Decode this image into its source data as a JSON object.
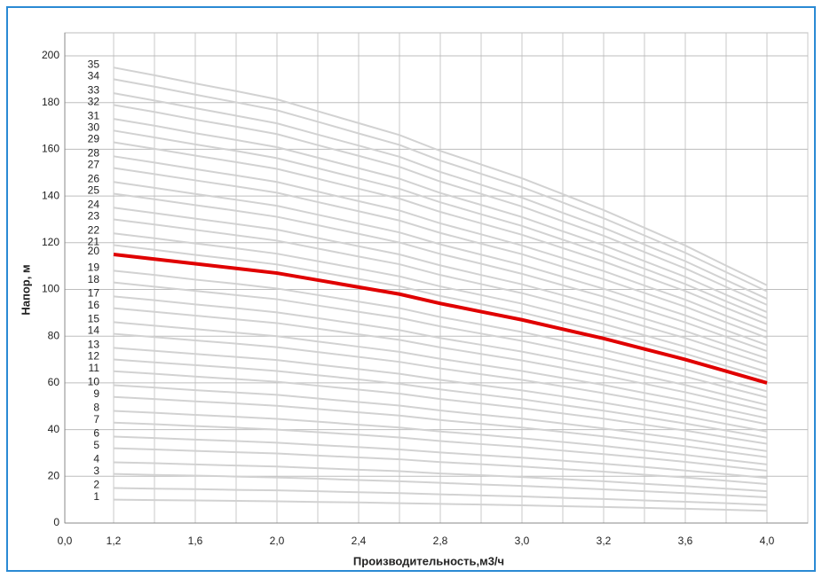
{
  "chart_data": {
    "type": "line",
    "x_label": "Производительность,м3/ч",
    "y_label": "Напор, м",
    "categories": [
      "0,0",
      "1,2",
      null,
      "1,6",
      null,
      "2,0",
      null,
      "2,4",
      null,
      "2,8",
      null,
      "3,0",
      null,
      "3,2",
      null,
      "3,6",
      null,
      "4,0"
    ],
    "ylim": [
      0,
      200
    ],
    "yticks": [
      0,
      20,
      40,
      60,
      80,
      100,
      120,
      140,
      160,
      180,
      200
    ],
    "grid": true,
    "series": [
      {
        "name": "1",
        "color": "#d2d2d2",
        "values": [
          null,
          10,
          9.8,
          9.7,
          9.5,
          9.3,
          9,
          8.8,
          8.5,
          8.2,
          7.9,
          7.6,
          7.2,
          6.9,
          6.5,
          6.1,
          5.7,
          5.2
        ]
      },
      {
        "name": "2",
        "color": "#d2d2d2",
        "values": [
          null,
          15,
          14.7,
          14.5,
          14.2,
          14,
          13.6,
          13.2,
          12.8,
          12.3,
          11.8,
          11.4,
          10.8,
          10.3,
          9.7,
          9.1,
          8.5,
          7.8
        ]
      },
      {
        "name": "3",
        "color": "#d2d2d2",
        "values": [
          null,
          21,
          20.6,
          20.3,
          19.9,
          19.5,
          19,
          18.4,
          17.9,
          17.2,
          16.5,
          15.9,
          15.2,
          14.4,
          13.6,
          12.8,
          11.9,
          11
        ]
      },
      {
        "name": "4",
        "color": "#d2d2d2",
        "values": [
          null,
          26,
          25.6,
          25.1,
          24.6,
          24.2,
          23.5,
          22.8,
          22.2,
          21.2,
          20.5,
          19.7,
          18.8,
          17.9,
          16.8,
          15.8,
          14.7,
          13.6
        ]
      },
      {
        "name": "5",
        "color": "#d2d2d2",
        "values": [
          null,
          32,
          31.5,
          30.9,
          30.3,
          29.8,
          28.9,
          28.1,
          27.3,
          26.1,
          25.2,
          24.2,
          23.1,
          22,
          20.7,
          19.5,
          18.1,
          16.7
        ]
      },
      {
        "name": "6",
        "color": "#d2d2d2",
        "values": [
          null,
          37,
          36.4,
          35.7,
          35.1,
          34.4,
          33.4,
          32.5,
          31.5,
          30.2,
          29.1,
          28,
          26.7,
          25.4,
          24,
          22.5,
          20.9,
          19.3
        ]
      },
      {
        "name": "7",
        "color": "#d2d2d2",
        "values": [
          null,
          43,
          42.3,
          41.5,
          40.8,
          40,
          38.9,
          37.8,
          36.6,
          35.1,
          33.8,
          32.6,
          31,
          29.5,
          27.9,
          26.2,
          24.3,
          22.4
        ]
      },
      {
        "name": "8",
        "color": "#d2d2d2",
        "values": [
          null,
          48,
          47.2,
          46.3,
          45.5,
          44.6,
          43.4,
          42.1,
          40.9,
          39.2,
          37.8,
          36.3,
          34.7,
          33,
          31.1,
          29.2,
          27.1,
          25.1
        ]
      },
      {
        "name": "9",
        "color": "#d2d2d2",
        "values": [
          null,
          54,
          53.1,
          52.1,
          51.2,
          50.2,
          48.8,
          47.4,
          46,
          44.1,
          42.5,
          40.9,
          39,
          37.1,
          35,
          32.9,
          30.5,
          28.2
        ]
      },
      {
        "name": "10",
        "color": "#d2d2d2",
        "values": [
          null,
          59,
          58,
          56.9,
          55.9,
          54.9,
          53.3,
          51.8,
          50.3,
          48.2,
          46.4,
          44.7,
          42.6,
          40.5,
          38.2,
          35.9,
          33.3,
          30.8
        ]
      },
      {
        "name": "11",
        "color": "#d2d2d2",
        "values": [
          null,
          65,
          63.9,
          62.7,
          61.6,
          60.5,
          58.8,
          57.1,
          55.4,
          53.1,
          51.2,
          49.2,
          46.9,
          44.7,
          42.1,
          39.6,
          36.7,
          33.9
        ]
      },
      {
        "name": "12",
        "color": "#d2d2d2",
        "values": [
          null,
          70,
          68.8,
          67.6,
          66.4,
          65.1,
          63.3,
          61.5,
          59.6,
          57.2,
          55.1,
          53,
          50.5,
          48.1,
          45.4,
          42.6,
          39.6,
          36.5
        ]
      },
      {
        "name": "13",
        "color": "#d2d2d2",
        "values": [
          null,
          75,
          73.7,
          72.4,
          71.1,
          69.8,
          67.8,
          65.9,
          63.9,
          61.3,
          59,
          56.8,
          54.2,
          51.5,
          48.6,
          45.7,
          42.4,
          39.2
        ]
      },
      {
        "name": "14",
        "color": "#d2d2d2",
        "values": [
          null,
          81,
          79.6,
          78.2,
          76.8,
          75.3,
          73.2,
          71.1,
          69,
          66.2,
          63.7,
          61.3,
          58.5,
          55.6,
          52.5,
          49.3,
          45.8,
          42.3
        ]
      },
      {
        "name": "15",
        "color": "#d2d2d2",
        "values": [
          null,
          86,
          84.5,
          83,
          81.5,
          80,
          77.7,
          75.5,
          73.3,
          70.3,
          67.7,
          65.1,
          62.1,
          59.1,
          55.7,
          52.4,
          48.6,
          44.9
        ]
      },
      {
        "name": "16",
        "color": "#d2d2d2",
        "values": [
          null,
          92,
          90.4,
          88.8,
          87.2,
          85.6,
          83.2,
          80.8,
          78.4,
          75.2,
          72.4,
          69.6,
          66.4,
          63.2,
          59.6,
          56,
          52,
          48
        ]
      },
      {
        "name": "17",
        "color": "#d2d2d2",
        "values": [
          null,
          97,
          95.4,
          93.6,
          92,
          90.2,
          87.7,
          85.2,
          82.6,
          79.2,
          76.3,
          73.4,
          70,
          66.6,
          62.9,
          59.1,
          54.8,
          50.6
        ]
      },
      {
        "name": "18",
        "color": "#d2d2d2",
        "values": [
          null,
          103,
          101.2,
          99.4,
          97.6,
          95.8,
          93.1,
          90.4,
          87.8,
          84.2,
          81.1,
          78,
          74.4,
          70.8,
          66.7,
          62.7,
          58.2,
          53.8
        ]
      },
      {
        "name": "19",
        "color": "#d2d2d2",
        "values": [
          null,
          108,
          106.2,
          104.2,
          102.4,
          100.4,
          97.6,
          94.8,
          92,
          88.2,
          85,
          81.8,
          78,
          74.2,
          70,
          65.8,
          61,
          56.4
        ]
      },
      {
        "name": "20",
        "color": "#e00000",
        "values": [
          null,
          115,
          113,
          111,
          109,
          107,
          104,
          101,
          98,
          94,
          90.5,
          87,
          83,
          79,
          74.5,
          70,
          65,
          60
        ]
      },
      {
        "name": "21",
        "color": "#d2d2d2",
        "values": [
          null,
          119,
          117,
          114.8,
          112.8,
          110.7,
          107.6,
          104.5,
          101.4,
          97.2,
          93.7,
          90.1,
          85.9,
          81.8,
          77.1,
          72.5,
          67.2,
          62.1
        ]
      },
      {
        "name": "22",
        "color": "#d2d2d2",
        "values": [
          null,
          124,
          121.9,
          119.7,
          117.6,
          115.3,
          112.1,
          108.9,
          105.6,
          101.3,
          97.6,
          93.9,
          89.5,
          85.2,
          80.4,
          75.5,
          70.1,
          64.7
        ]
      },
      {
        "name": "23",
        "color": "#d2d2d2",
        "values": [
          null,
          130,
          127.8,
          125.5,
          123.2,
          120.9,
          117.5,
          114.1,
          110.8,
          106.2,
          102.3,
          98.4,
          93.9,
          89.3,
          84.2,
          79.2,
          73.5,
          67.9
        ]
      },
      {
        "name": "24",
        "color": "#d2d2d2",
        "values": [
          null,
          135,
          132.7,
          130.3,
          128,
          125.6,
          122,
          118.5,
          115,
          110.3,
          106.2,
          102.2,
          97.5,
          92.7,
          87.5,
          82.2,
          76.3,
          70.5
        ]
      },
      {
        "name": "25",
        "color": "#d2d2d2",
        "values": [
          null,
          141,
          138.6,
          136.1,
          133.7,
          131.1,
          127.5,
          123.8,
          120.1,
          115.2,
          111,
          106.7,
          101.8,
          96.9,
          91.4,
          85.9,
          79.7,
          73.6
        ]
      },
      {
        "name": "26",
        "color": "#d2d2d2",
        "values": [
          null,
          146,
          143.5,
          140.9,
          138.4,
          135.8,
          132,
          128.2,
          124.4,
          119.3,
          114.9,
          110.5,
          105.4,
          100.3,
          94.6,
          88.9,
          82.5,
          76.2
        ]
      },
      {
        "name": "27",
        "color": "#d2d2d2",
        "values": [
          null,
          152,
          149.4,
          146.7,
          144.1,
          141.4,
          137.4,
          133.5,
          129.5,
          124.2,
          119.6,
          115.1,
          109.7,
          104.4,
          98.5,
          92.6,
          85.9,
          79.3
        ]
      },
      {
        "name": "28",
        "color": "#d2d2d2",
        "values": [
          null,
          157,
          154.3,
          151.5,
          148.8,
          146,
          141.9,
          137.8,
          133.8,
          128.3,
          123.6,
          118.8,
          113.4,
          107.9,
          101.7,
          95.6,
          88.7,
          82
        ]
      },
      {
        "name": "29",
        "color": "#d2d2d2",
        "values": [
          null,
          163,
          160.2,
          157.3,
          154.5,
          151.6,
          147.4,
          143.1,
          138.9,
          133.2,
          128.3,
          123.4,
          117.7,
          112,
          105.6,
          99.3,
          92.1,
          85.1
        ]
      },
      {
        "name": "30",
        "color": "#d2d2d2",
        "values": [
          null,
          168,
          165.1,
          162.1,
          159.3,
          156.2,
          151.9,
          147.5,
          143.1,
          137.3,
          132.2,
          127.2,
          121.3,
          115.4,
          108.9,
          102.3,
          94.9,
          87.7
        ]
      },
      {
        "name": "31",
        "color": "#d2d2d2",
        "values": [
          null,
          173,
          170.1,
          166.9,
          164,
          160.9,
          156.4,
          151.9,
          147.4,
          141.3,
          136.2,
          131,
          124.9,
          118.9,
          112.1,
          105.4,
          97.7,
          90.3
        ]
      },
      {
        "name": "32",
        "color": "#d2d2d2",
        "values": [
          null,
          179,
          176,
          172.7,
          169.7,
          166.5,
          161.8,
          157.2,
          152.5,
          146.2,
          140.9,
          135.5,
          129.2,
          123,
          116,
          109,
          101.1,
          93.4
        ]
      },
      {
        "name": "33",
        "color": "#d2d2d2",
        "values": [
          null,
          184,
          180.9,
          177.6,
          174.4,
          171.1,
          166.3,
          161.6,
          156.8,
          150.3,
          144.8,
          139.3,
          132.8,
          126.4,
          119.2,
          112.1,
          104,
          96
        ]
      },
      {
        "name": "34",
        "color": "#d2d2d2",
        "values": [
          null,
          190,
          186.8,
          183.4,
          180.1,
          176.7,
          171.8,
          166.8,
          161.9,
          155.2,
          149.5,
          143.8,
          137.2,
          130.5,
          123.1,
          115.7,
          107.4,
          99.2
        ]
      },
      {
        "name": "35",
        "color": "#d2d2d2",
        "values": [
          null,
          195,
          191.7,
          188.2,
          184.9,
          181.4,
          176.3,
          171.2,
          166.1,
          159.3,
          153.5,
          147.6,
          140.8,
          134,
          126.4,
          118.8,
          110.2,
          101.8
        ]
      }
    ]
  }
}
